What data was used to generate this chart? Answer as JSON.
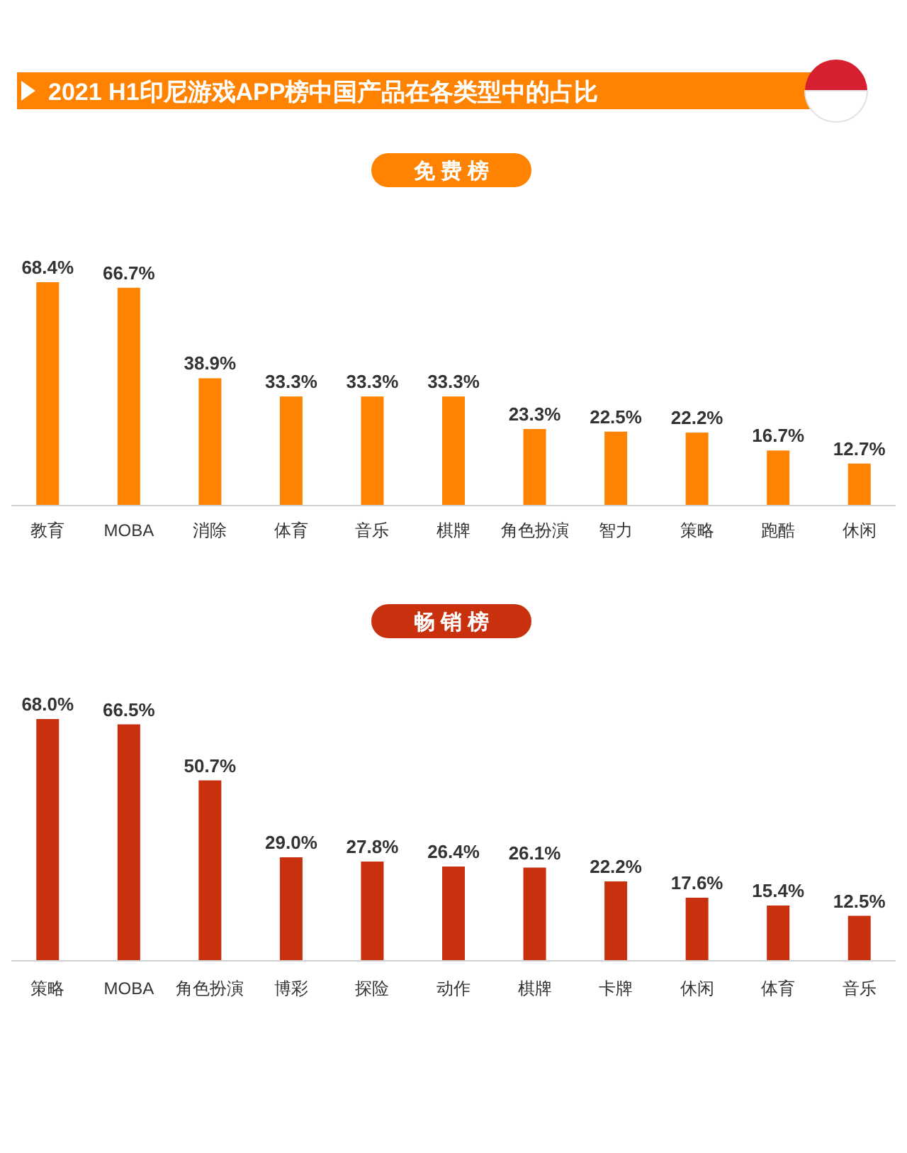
{
  "chart_data": [
    {
      "type": "bar",
      "title": "2021 H1印尼游戏APP榜中国产品在各类型中的占比",
      "subtitle": "免费榜",
      "categories": [
        "教育",
        "MOBA",
        "消除",
        "体育",
        "音乐",
        "棋牌",
        "角色扮演",
        "智力",
        "策略",
        "跑酷",
        "休闲"
      ],
      "values": [
        68.4,
        66.7,
        38.9,
        33.3,
        33.3,
        33.3,
        23.3,
        22.5,
        22.2,
        16.7,
        12.7
      ],
      "value_labels": [
        "68.4%",
        "66.7%",
        "38.9%",
        "33.3%",
        "33.3%",
        "33.3%",
        "23.3%",
        "22.5%",
        "22.2%",
        "16.7%",
        "12.7%"
      ],
      "color": "#ff8200"
    },
    {
      "type": "bar",
      "subtitle": "畅销榜",
      "categories": [
        "策略",
        "MOBA",
        "角色扮演",
        "博彩",
        "探险",
        "动作",
        "棋牌",
        "卡牌",
        "休闲",
        "体育",
        "音乐"
      ],
      "values": [
        68.0,
        66.5,
        50.7,
        29.0,
        27.8,
        26.4,
        26.1,
        22.2,
        17.6,
        15.4,
        12.5
      ],
      "value_labels": [
        "68.0%",
        "66.5%",
        "50.7%",
        "29.0%",
        "27.8%",
        "26.4%",
        "26.1%",
        "22.2%",
        "17.6%",
        "15.4%",
        "12.5%"
      ],
      "color": "#c9300e"
    }
  ]
}
